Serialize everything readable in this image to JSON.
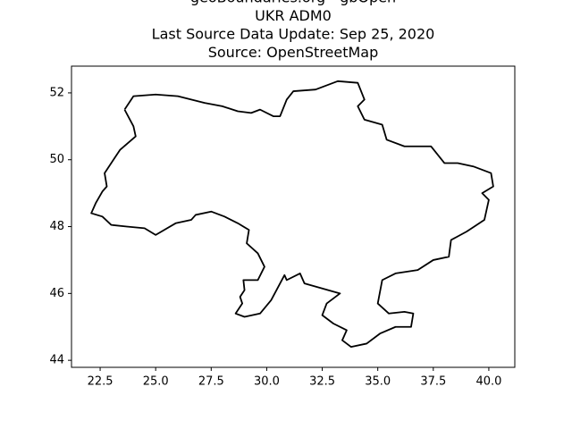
{
  "chart_data": {
    "type": "line",
    "title": [
      "geoBoundaries.org - gbOpen",
      "UKR ADM0",
      "Last Source Data Update: Sep 25, 2020",
      "Source: OpenStreetMap"
    ],
    "color": "#000000",
    "x": [
      23.6,
      24.0,
      25.0,
      26.0,
      27.2,
      28.0,
      28.7,
      29.3,
      29.7,
      30.3,
      30.6,
      30.9,
      31.2,
      32.2,
      33.2,
      34.1,
      34.4,
      34.1,
      34.4,
      35.2,
      35.4,
      36.2,
      37.4,
      38.0,
      38.6,
      39.3,
      40.1,
      40.2,
      39.7,
      40.0,
      39.8,
      39.0,
      38.3,
      38.2,
      37.5,
      36.8,
      35.8,
      35.2,
      35.0,
      35.5,
      36.2,
      36.6,
      36.5,
      35.8,
      35.1,
      34.5,
      33.8,
      33.4,
      33.6,
      33.0,
      32.5,
      32.7,
      33.3,
      31.7,
      31.5,
      30.9,
      30.8,
      30.2,
      29.7,
      29.0,
      28.6,
      28.9,
      28.8,
      29.0,
      28.95,
      29.6,
      29.9,
      29.6,
      29.1,
      29.2,
      28.7,
      28.1,
      27.5,
      26.8,
      26.6,
      25.9,
      25.0,
      24.5,
      23.7,
      23.0,
      22.6,
      22.1,
      22.3,
      22.6,
      22.8,
      22.7,
      23.4,
      24.1,
      24.0,
      23.6
    ],
    "values": [
      51.5,
      51.9,
      51.95,
      51.9,
      51.7,
      51.6,
      51.45,
      51.4,
      51.5,
      51.3,
      51.3,
      51.8,
      52.05,
      52.1,
      52.35,
      52.3,
      51.8,
      51.6,
      51.2,
      51.05,
      50.6,
      50.4,
      50.4,
      49.9,
      49.9,
      49.8,
      49.6,
      49.2,
      49.0,
      48.8,
      48.2,
      47.85,
      47.6,
      47.1,
      47.0,
      46.7,
      46.6,
      46.4,
      45.7,
      45.4,
      45.45,
      45.4,
      45.0,
      45.0,
      44.8,
      44.5,
      44.4,
      44.6,
      44.9,
      45.1,
      45.35,
      45.7,
      46.0,
      46.3,
      46.6,
      46.4,
      46.55,
      45.8,
      45.4,
      45.3,
      45.4,
      45.7,
      45.9,
      46.1,
      46.4,
      46.4,
      46.8,
      47.2,
      47.5,
      47.9,
      48.1,
      48.3,
      48.45,
      48.35,
      48.2,
      48.1,
      47.75,
      47.95,
      48.0,
      48.05,
      48.3,
      48.4,
      48.7,
      49.05,
      49.2,
      49.6,
      50.3,
      50.7,
      51.0,
      51.5
    ],
    "xlim": [
      21.21,
      41.17
    ],
    "ylim": [
      43.79,
      52.8
    ],
    "xticks": [
      {
        "value": 22.5,
        "label": "22.5"
      },
      {
        "value": 25.0,
        "label": "25.0"
      },
      {
        "value": 27.5,
        "label": "27.5"
      },
      {
        "value": 30.0,
        "label": "30.0"
      },
      {
        "value": 32.5,
        "label": "32.5"
      },
      {
        "value": 35.0,
        "label": "35.0"
      },
      {
        "value": 37.5,
        "label": "37.5"
      },
      {
        "value": 40.0,
        "label": "40.0"
      }
    ],
    "yticks": [
      44,
      46,
      48,
      50,
      52
    ]
  }
}
